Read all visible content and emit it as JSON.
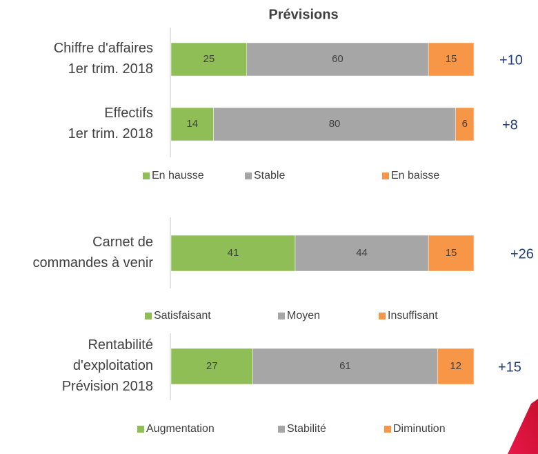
{
  "title": "Prévisions",
  "chart_data": [
    {
      "type": "stacked-bar",
      "orientation": "horizontal",
      "categories": [
        [
          "Chiffre d'affaires",
          "1er trim. 2018"
        ],
        [
          "Effectifs",
          "1er trim. 2018"
        ]
      ],
      "series": [
        {
          "name": "En hausse",
          "color": "#8fbd56",
          "values": [
            25,
            14
          ]
        },
        {
          "name": "Stable",
          "color": "#a6a6a6",
          "values": [
            60,
            80
          ]
        },
        {
          "name": "En baisse",
          "color": "#f79646",
          "values": [
            15,
            6
          ]
        }
      ],
      "annotations": [
        "+10",
        "+8"
      ],
      "xlim": [
        0,
        100
      ]
    },
    {
      "type": "stacked-bar",
      "orientation": "horizontal",
      "categories": [
        [
          "Carnet de",
          "commandes à venir"
        ]
      ],
      "series": [
        {
          "name": "Satisfaisant",
          "color": "#8fbd56",
          "values": [
            41
          ]
        },
        {
          "name": "Moyen",
          "color": "#a6a6a6",
          "values": [
            44
          ]
        },
        {
          "name": "Insuffisant",
          "color": "#f79646",
          "values": [
            15
          ]
        }
      ],
      "annotations": [
        "+26"
      ],
      "xlim": [
        0,
        100
      ]
    },
    {
      "type": "stacked-bar",
      "orientation": "horizontal",
      "categories": [
        [
          "Rentabilité",
          "d'exploitation",
          "Prévision 2018"
        ]
      ],
      "series": [
        {
          "name": "Augmentation",
          "color": "#8fbd56",
          "values": [
            27
          ]
        },
        {
          "name": "Stabilité",
          "color": "#a6a6a6",
          "values": [
            61
          ]
        },
        {
          "name": "Diminution",
          "color": "#f79646",
          "values": [
            12
          ]
        }
      ],
      "annotations": [
        "+15"
      ],
      "xlim": [
        0,
        100
      ]
    }
  ]
}
